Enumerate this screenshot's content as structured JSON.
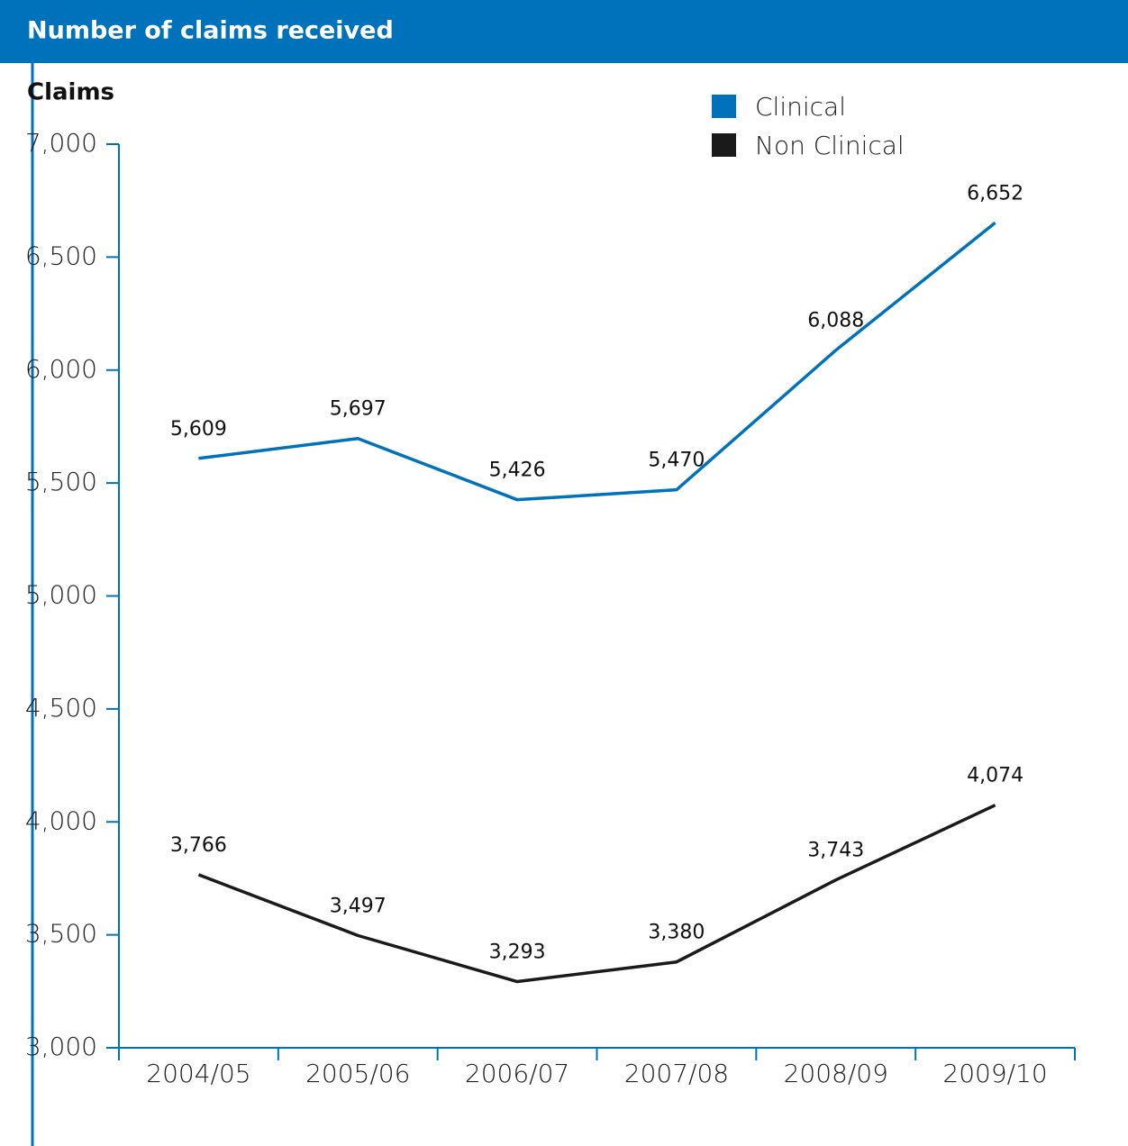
{
  "chart_data": {
    "type": "line",
    "title": "Number of claims received",
    "y_label": "Claims",
    "categories": [
      "2004/05",
      "2005/06",
      "2006/07",
      "2007/08",
      "2008/09",
      "2009/10"
    ],
    "series": [
      {
        "name": "Clinical",
        "color": "#0072bc",
        "values": [
          5609,
          5697,
          5426,
          5470,
          6088,
          6652
        ],
        "value_labels": [
          "5,609",
          "5,697",
          "5,426",
          "5,470",
          "6,088",
          "6,652"
        ]
      },
      {
        "name": "Non Clinical",
        "color": "#1a1a1a",
        "values": [
          3766,
          3497,
          3293,
          3380,
          3743,
          4074
        ],
        "value_labels": [
          "3,766",
          "3,497",
          "3,293",
          "3,380",
          "3,743",
          "4,074"
        ]
      }
    ],
    "ylim": [
      3000,
      7000
    ],
    "yticks": [
      {
        "value": 3000,
        "label": "3,000"
      },
      {
        "value": 3500,
        "label": "3,500"
      },
      {
        "value": 4000,
        "label": "4,000"
      },
      {
        "value": 4500,
        "label": "4,500"
      },
      {
        "value": 5000,
        "label": "5,000"
      },
      {
        "value": 5500,
        "label": "5,500"
      },
      {
        "value": 6000,
        "label": "6,000"
      },
      {
        "value": 6500,
        "label": "6,500"
      },
      {
        "value": 7000,
        "label": "7,000"
      }
    ],
    "legend": "top-right"
  }
}
